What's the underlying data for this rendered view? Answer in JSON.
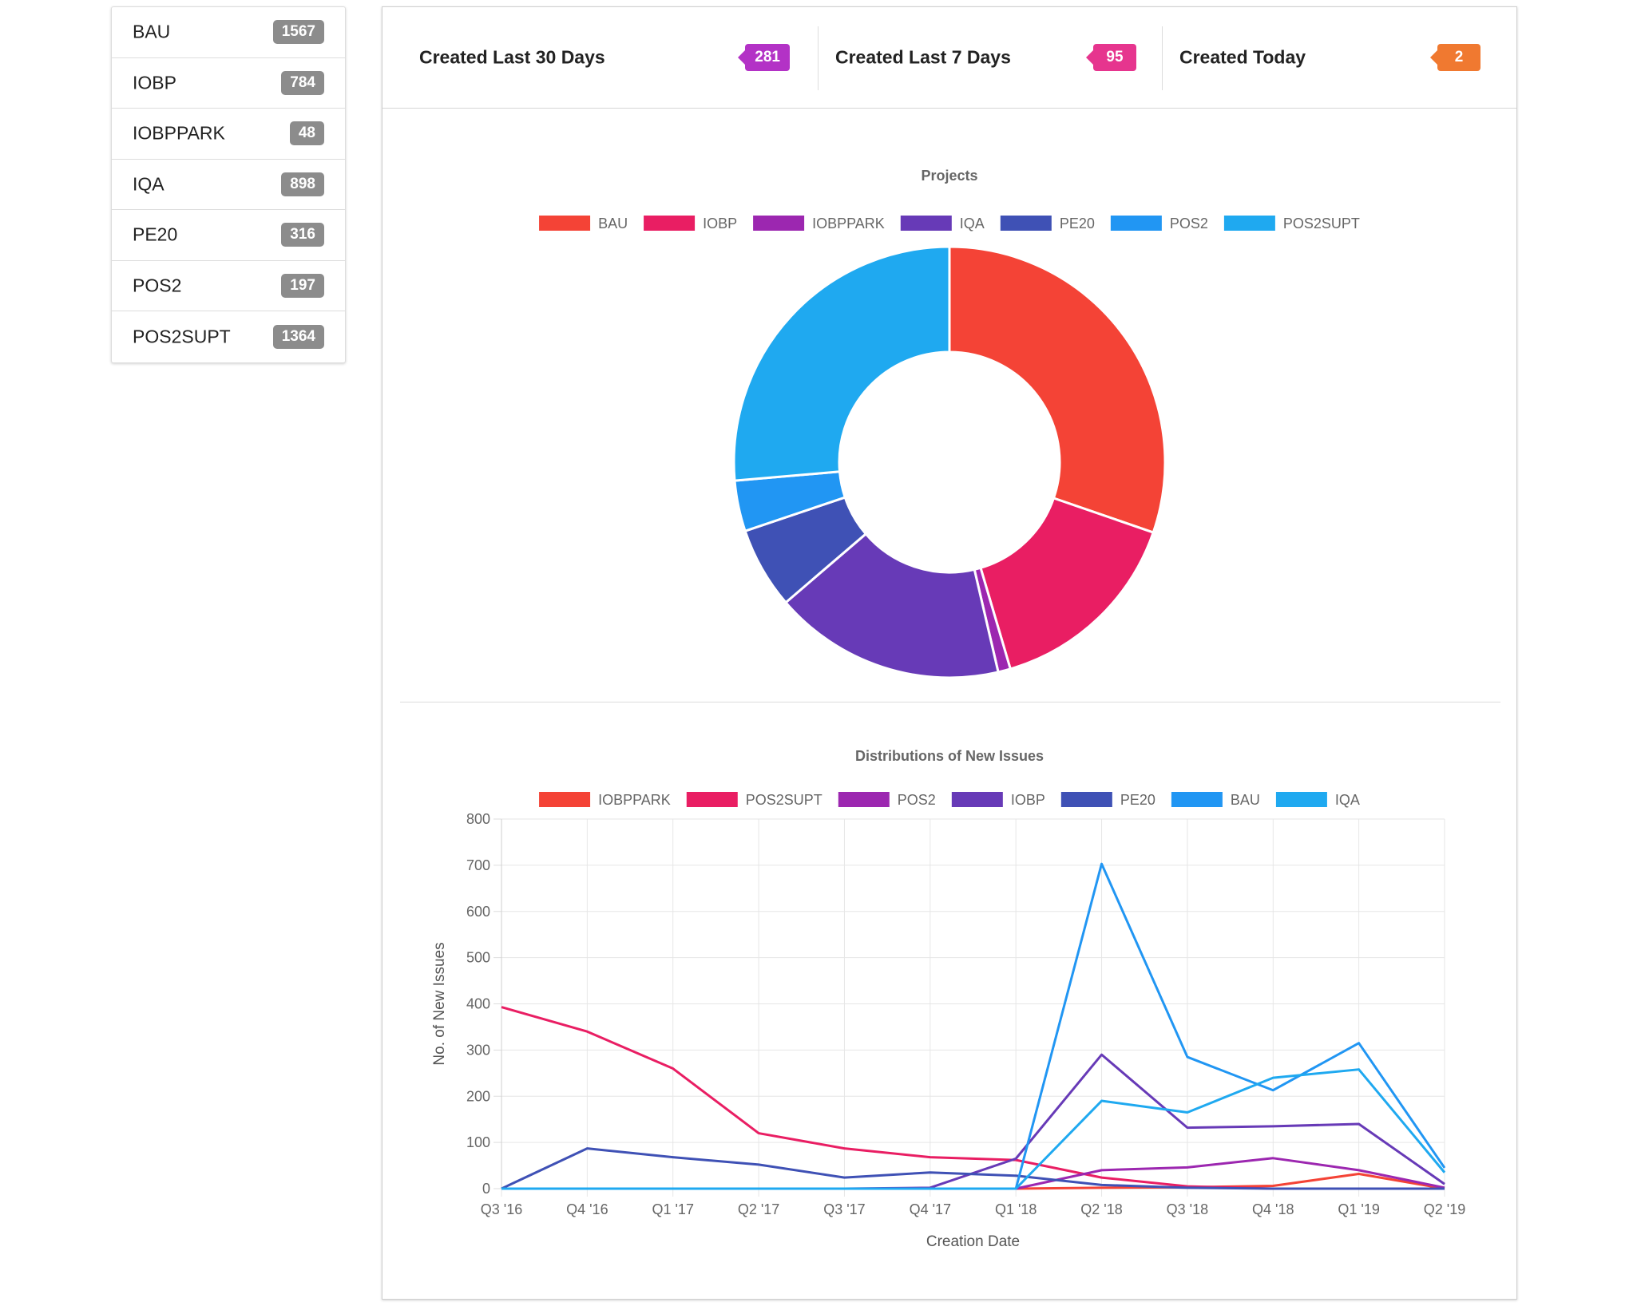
{
  "sidebar": {
    "items": [
      {
        "label": "BAU",
        "count": "1567"
      },
      {
        "label": "IOBP",
        "count": "784"
      },
      {
        "label": "IOBPPARK",
        "count": "48"
      },
      {
        "label": "IQA",
        "count": "898"
      },
      {
        "label": "PE20",
        "count": "316"
      },
      {
        "label": "POS2",
        "count": "197"
      },
      {
        "label": "POS2SUPT",
        "count": "1364"
      }
    ]
  },
  "stats": [
    {
      "label": "Created Last 30 Days",
      "value": "281",
      "color": "#b332c6"
    },
    {
      "label": "Created Last 7 Days",
      "value": "95",
      "color": "#e6358e"
    },
    {
      "label": "Created Today",
      "value": "2",
      "color": "#f07930"
    }
  ],
  "chart_data": [
    {
      "type": "pie",
      "title": "Projects",
      "legend_position": "top",
      "labels": [
        "BAU",
        "IOBP",
        "IOBPPARK",
        "IQA",
        "PE20",
        "POS2",
        "POS2SUPT"
      ],
      "values": [
        1567,
        784,
        48,
        898,
        316,
        197,
        1364
      ],
      "colors": [
        "#f44336",
        "#e91e63",
        "#9c27b0",
        "#673ab7",
        "#3f51b5",
        "#2196f3",
        "#1fa9f0"
      ],
      "cutout": 0.5
    },
    {
      "type": "line",
      "title": "Distributions of New Issues",
      "xlabel": "Creation Date",
      "ylabel": "No. of New Issues",
      "ylim": [
        0,
        800
      ],
      "yticks": [
        0,
        100,
        200,
        300,
        400,
        500,
        600,
        700,
        800
      ],
      "grid": true,
      "legend_position": "top",
      "categories": [
        "Q3 '16",
        "Q4 '16",
        "Q1 '17",
        "Q2 '17",
        "Q3 '17",
        "Q4 '17",
        "Q1 '18",
        "Q2 '18",
        "Q3 '18",
        "Q4 '18",
        "Q1 '19",
        "Q2 '19"
      ],
      "series": [
        {
          "name": "IOBPPARK",
          "color": "#f44336",
          "values": [
            0,
            0,
            0,
            0,
            0,
            0,
            0,
            2,
            3,
            6,
            32,
            0
          ]
        },
        {
          "name": "POS2SUPT",
          "color": "#e91e63",
          "values": [
            393,
            340,
            260,
            120,
            87,
            68,
            62,
            24,
            5,
            0,
            0,
            0
          ]
        },
        {
          "name": "POS2",
          "color": "#9c27b0",
          "values": [
            0,
            0,
            0,
            0,
            0,
            0,
            0,
            40,
            46,
            66,
            40,
            2
          ]
        },
        {
          "name": "IOBP",
          "color": "#673ab7",
          "values": [
            0,
            0,
            0,
            0,
            0,
            2,
            65,
            290,
            132,
            135,
            140,
            10
          ]
        },
        {
          "name": "PE20",
          "color": "#3f51b5",
          "values": [
            0,
            87,
            68,
            52,
            24,
            35,
            28,
            8,
            2,
            0,
            0,
            0
          ]
        },
        {
          "name": "BAU",
          "color": "#2196f3",
          "values": [
            0,
            0,
            0,
            0,
            0,
            0,
            0,
            703,
            285,
            213,
            315,
            45
          ]
        },
        {
          "name": "IQA",
          "color": "#1fa9f0",
          "values": [
            0,
            0,
            0,
            0,
            0,
            0,
            0,
            190,
            165,
            240,
            258,
            35
          ]
        }
      ]
    }
  ]
}
